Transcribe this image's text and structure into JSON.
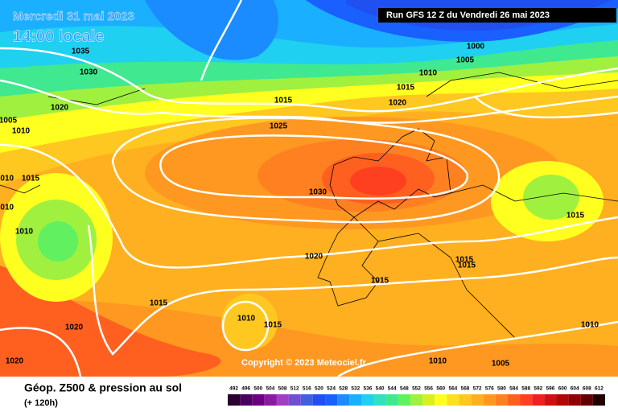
{
  "header": {
    "date": "Mercredi 31 mai 2023",
    "time": "14:00 locale",
    "run": "Run GFS 12 Z du Vendredi 26 mai 2023"
  },
  "copyright": "Copyright © 2023 Meteociel.fr",
  "footer": {
    "title": "Géop. Z500 & pression au sol",
    "lead": "(+ 120h)"
  },
  "isobar_labels": [
    "1035",
    "1030",
    "1020",
    "1005",
    "1010",
    "1010",
    "1015",
    "1010",
    "1010",
    "1015",
    "1025",
    "1000",
    "1005",
    "1010",
    "1015",
    "1020",
    "1030",
    "1015",
    "1020",
    "1015",
    "1015",
    "1015",
    "1015",
    "1010",
    "1015",
    "1020",
    "1020",
    "1010",
    "1005",
    "1010"
  ],
  "legend": {
    "labels": [
      492,
      496,
      500,
      504,
      508,
      512,
      516,
      520,
      524,
      528,
      532,
      536,
      540,
      544,
      548,
      552,
      556,
      560,
      564,
      568,
      572,
      576,
      580,
      584,
      588,
      592,
      596,
      600,
      604,
      608,
      612
    ],
    "colors": [
      "#2a0033",
      "#4b0060",
      "#6a0080",
      "#8a1aa0",
      "#a040c0",
      "#7050d0",
      "#4060e0",
      "#2050f0",
      "#1a60ff",
      "#1a8cff",
      "#1ab0ff",
      "#20d0f0",
      "#30e0c0",
      "#40e890",
      "#60f060",
      "#a0f040",
      "#d8f020",
      "#ffff20",
      "#ffe020",
      "#ffc820",
      "#ffb020",
      "#ff9820",
      "#ff8020",
      "#ff6020",
      "#ff4020",
      "#f02020",
      "#d01010",
      "#b00808",
      "#900000",
      "#600000",
      "#200000"
    ]
  }
}
